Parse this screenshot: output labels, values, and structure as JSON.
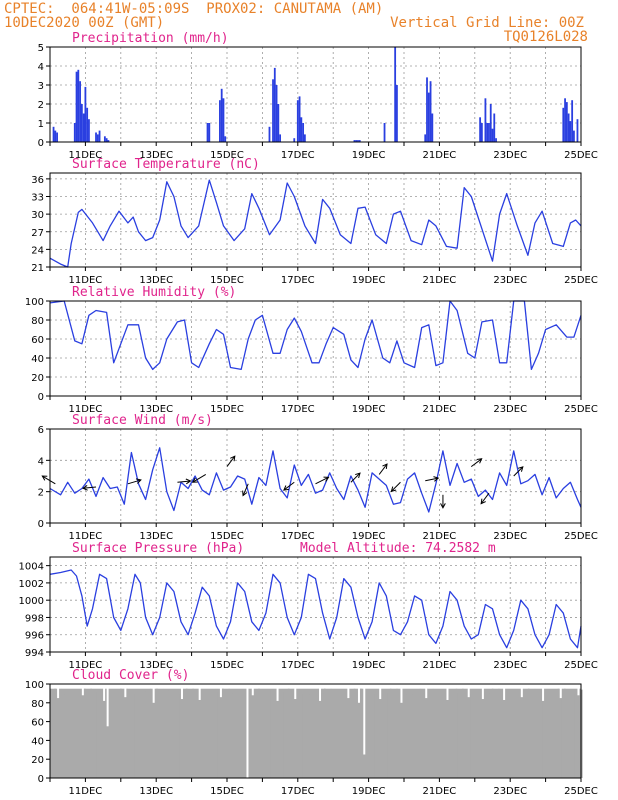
{
  "header": {
    "line1_left": "CPTEC:  064:41W-05:09S  PROX02: CANUTAMA (AM)",
    "line2_left": "10DEC2020 00Z (GMT)",
    "line2_right": "Vertical Grid Line: 00Z",
    "line3_right": "TQ0126L028"
  },
  "colors": {
    "header": "#e8822a",
    "title": "#e0248c",
    "series": "#2a3fe0",
    "cloud": "#aaaaaa",
    "grid": "#9a9a9a"
  },
  "x_ticks": [
    "11DEC",
    "13DEC",
    "15DEC",
    "17DEC",
    "19DEC",
    "21DEC",
    "23DEC",
    "25DEC"
  ],
  "chart_data": [
    {
      "id": "precip",
      "type": "bar",
      "title": "Precipitation (mm/h)",
      "x_range_days": [
        10,
        25
      ],
      "ylim": [
        0,
        5
      ],
      "yticks": [
        0,
        1,
        2,
        3,
        4,
        5
      ],
      "grid": true,
      "x": [
        10.1,
        10.15,
        10.2,
        10.7,
        10.75,
        10.8,
        10.85,
        10.9,
        10.95,
        11.0,
        11.05,
        11.1,
        11.3,
        11.35,
        11.4,
        11.55,
        11.6,
        11.65,
        14.45,
        14.5,
        14.8,
        14.85,
        14.9,
        14.95,
        16.2,
        16.3,
        16.35,
        16.4,
        16.45,
        16.5,
        16.9,
        17.0,
        17.05,
        17.1,
        17.15,
        17.2,
        18.6,
        18.65,
        18.7,
        18.75,
        19.45,
        19.75,
        19.8,
        20.6,
        20.65,
        20.7,
        20.75,
        20.8,
        22.15,
        22.2,
        22.3,
        22.35,
        22.4,
        22.45,
        22.5,
        22.55,
        22.6,
        24.5,
        24.55,
        24.6,
        24.65,
        24.7,
        24.75,
        24.8,
        24.9
      ],
      "values": [
        0.8,
        0.6,
        0.5,
        1.0,
        3.7,
        3.8,
        3.2,
        2.0,
        1.5,
        2.9,
        1.8,
        1.2,
        0.5,
        0.4,
        0.6,
        0.3,
        0.2,
        0.1,
        1.0,
        1.0,
        2.2,
        2.8,
        2.3,
        0.3,
        0.8,
        3.3,
        3.9,
        3.0,
        2.0,
        0.4,
        0.2,
        2.2,
        2.4,
        1.3,
        1.0,
        0.4,
        0.1,
        0.1,
        0.1,
        0.1,
        1.0,
        5.0,
        3.0,
        0.4,
        3.4,
        2.6,
        3.2,
        1.5,
        1.3,
        1.0,
        2.3,
        1.0,
        1.0,
        2.0,
        0.7,
        1.5,
        0.2,
        1.8,
        2.3,
        2.1,
        1.5,
        1.1,
        2.2,
        0.6,
        1.2
      ]
    },
    {
      "id": "temp",
      "type": "line",
      "title": "Surface Temperature (nC)",
      "x_range_days": [
        10,
        25
      ],
      "ylim": [
        21,
        37
      ],
      "yticks": [
        21,
        24,
        27,
        30,
        33,
        36
      ],
      "grid": true,
      "x": [
        10.0,
        10.3,
        10.5,
        10.6,
        10.8,
        10.9,
        11.2,
        11.5,
        11.7,
        11.95,
        12.2,
        12.35,
        12.5,
        12.7,
        12.9,
        13.1,
        13.3,
        13.5,
        13.7,
        13.9,
        14.2,
        14.5,
        14.7,
        14.9,
        15.2,
        15.5,
        15.7,
        15.9,
        16.2,
        16.5,
        16.7,
        16.9,
        17.2,
        17.5,
        17.7,
        17.9,
        18.2,
        18.5,
        18.7,
        18.9,
        19.2,
        19.5,
        19.7,
        19.9,
        20.2,
        20.5,
        20.7,
        20.9,
        21.2,
        21.5,
        21.7,
        21.9,
        22.2,
        22.5,
        22.7,
        22.9,
        23.2,
        23.5,
        23.7,
        23.9,
        24.2,
        24.5,
        24.7,
        24.85,
        25.0
      ],
      "values": [
        22.5,
        21.5,
        21.0,
        25,
        30.3,
        30.8,
        28.5,
        25.5,
        28,
        30.5,
        28.5,
        29.5,
        27,
        25.5,
        26,
        29,
        35.5,
        33,
        28,
        26,
        28,
        35.8,
        32,
        28,
        25.5,
        27.5,
        33.5,
        31,
        26.5,
        29,
        35.3,
        33,
        28,
        25,
        32.5,
        31,
        26.5,
        25,
        31,
        31.2,
        26.5,
        25,
        30,
        30.5,
        25.5,
        24.8,
        29,
        28,
        24.5,
        24.2,
        34.5,
        33,
        27.5,
        22,
        30,
        33.5,
        28,
        23,
        28.5,
        30.5,
        25,
        24.5,
        28.5,
        29,
        28
      ]
    },
    {
      "id": "rh",
      "type": "line",
      "title": "Relative Humidity (%)",
      "x_range_days": [
        10,
        25
      ],
      "ylim": [
        0,
        100
      ],
      "yticks": [
        0,
        20,
        40,
        60,
        80,
        100
      ],
      "grid": true,
      "x": [
        10.0,
        10.4,
        10.7,
        10.9,
        11.1,
        11.3,
        11.6,
        11.8,
        12.0,
        12.2,
        12.5,
        12.7,
        12.9,
        13.1,
        13.3,
        13.6,
        13.8,
        14.0,
        14.2,
        14.5,
        14.7,
        14.9,
        15.1,
        15.4,
        15.6,
        15.8,
        16.0,
        16.3,
        16.5,
        16.7,
        16.9,
        17.1,
        17.4,
        17.6,
        17.8,
        18.0,
        18.3,
        18.5,
        18.7,
        18.9,
        19.1,
        19.4,
        19.6,
        19.8,
        20.0,
        20.3,
        20.5,
        20.7,
        20.9,
        21.1,
        21.3,
        21.5,
        21.8,
        22.0,
        22.2,
        22.5,
        22.7,
        22.9,
        23.1,
        23.4,
        23.6,
        23.8,
        24.0,
        24.3,
        24.6,
        24.8,
        25.0
      ],
      "values": [
        98,
        100,
        58,
        55,
        85,
        90,
        88,
        35,
        55,
        75,
        75,
        40,
        28,
        35,
        60,
        78,
        80,
        35,
        30,
        55,
        70,
        65,
        30,
        28,
        60,
        80,
        85,
        45,
        45,
        70,
        82,
        68,
        35,
        35,
        55,
        72,
        65,
        38,
        30,
        60,
        80,
        40,
        35,
        58,
        35,
        30,
        72,
        75,
        32,
        35,
        100,
        90,
        45,
        40,
        78,
        80,
        35,
        35,
        100,
        100,
        28,
        45,
        70,
        75,
        62,
        62,
        85
      ]
    },
    {
      "id": "wind",
      "type": "line",
      "title": "Surface Wind (m/s)",
      "x_range_days": [
        10,
        25
      ],
      "ylim": [
        0,
        6
      ],
      "yticks": [
        0,
        2,
        4,
        6
      ],
      "grid": true,
      "x": [
        10.0,
        10.3,
        10.5,
        10.7,
        10.9,
        11.1,
        11.3,
        11.5,
        11.7,
        11.9,
        12.1,
        12.3,
        12.5,
        12.7,
        12.9,
        13.1,
        13.3,
        13.5,
        13.7,
        13.9,
        14.1,
        14.3,
        14.5,
        14.7,
        14.9,
        15.1,
        15.3,
        15.5,
        15.7,
        15.9,
        16.1,
        16.3,
        16.5,
        16.7,
        16.9,
        17.1,
        17.3,
        17.5,
        17.7,
        17.9,
        18.1,
        18.3,
        18.5,
        18.7,
        18.9,
        19.1,
        19.3,
        19.5,
        19.7,
        19.9,
        20.1,
        20.3,
        20.5,
        20.7,
        20.9,
        21.1,
        21.3,
        21.5,
        21.7,
        21.9,
        22.1,
        22.3,
        22.5,
        22.7,
        22.9,
        23.1,
        23.3,
        23.5,
        23.7,
        23.9,
        24.1,
        24.3,
        24.5,
        24.7,
        24.9,
        25.0
      ],
      "values": [
        2.2,
        1.8,
        2.6,
        1.9,
        2.2,
        2.8,
        1.7,
        2.9,
        2.2,
        2.3,
        1.2,
        4.5,
        2.5,
        1.5,
        3.4,
        4.8,
        2.0,
        0.8,
        2.6,
        2.2,
        3.0,
        2.1,
        1.8,
        3.2,
        2.1,
        2.3,
        3.0,
        2.8,
        1.2,
        2.9,
        2.4,
        4.6,
        2.2,
        1.6,
        3.7,
        2.4,
        3.1,
        1.9,
        2.1,
        3.2,
        2.2,
        1.5,
        3.0,
        2.1,
        1.0,
        3.2,
        2.8,
        2.4,
        1.2,
        1.3,
        2.8,
        3.2,
        1.9,
        0.7,
        2.5,
        4.6,
        2.4,
        3.8,
        2.6,
        2.8,
        1.7,
        2.1,
        1.5,
        3.2,
        2.4,
        4.6,
        2.5,
        2.7,
        3.1,
        1.8,
        2.9,
        1.6,
        2.2,
        2.6,
        1.5,
        1.0
      ]
    },
    {
      "id": "pressure",
      "type": "line",
      "title": "Surface Pressure (hPa)",
      "annotation": "Model Altitude: 74.2582 m",
      "x_range_days": [
        10,
        25
      ],
      "ylim": [
        994,
        1005
      ],
      "yticks": [
        994,
        996,
        998,
        1000,
        1002,
        1004
      ],
      "grid": true,
      "x": [
        10.0,
        10.3,
        10.6,
        10.75,
        10.9,
        11.05,
        11.2,
        11.4,
        11.6,
        11.8,
        12.0,
        12.2,
        12.4,
        12.55,
        12.7,
        12.9,
        13.1,
        13.3,
        13.5,
        13.7,
        13.9,
        14.1,
        14.3,
        14.5,
        14.7,
        14.9,
        15.1,
        15.3,
        15.5,
        15.7,
        15.9,
        16.1,
        16.3,
        16.5,
        16.7,
        16.9,
        17.1,
        17.3,
        17.5,
        17.7,
        17.9,
        18.1,
        18.3,
        18.5,
        18.7,
        18.9,
        19.1,
        19.3,
        19.5,
        19.7,
        19.9,
        20.1,
        20.3,
        20.5,
        20.7,
        20.9,
        21.1,
        21.3,
        21.5,
        21.7,
        21.9,
        22.1,
        22.3,
        22.5,
        22.7,
        22.9,
        23.1,
        23.3,
        23.5,
        23.7,
        23.9,
        24.1,
        24.3,
        24.5,
        24.7,
        24.9,
        25.0
      ],
      "values": [
        1003,
        1003.2,
        1003.5,
        1002.8,
        1000.5,
        997,
        999,
        1003,
        1002.5,
        998,
        996.5,
        999,
        1003,
        1002,
        998,
        996,
        998,
        1002,
        1001,
        997.5,
        996,
        998.5,
        1001.5,
        1000.5,
        997,
        995.5,
        997.5,
        1002,
        1001,
        997.5,
        996.5,
        998.5,
        1003,
        1002,
        998,
        996,
        998,
        1003,
        1002.5,
        998.5,
        995.5,
        998,
        1002.5,
        1001.5,
        998,
        995.5,
        997.5,
        1002,
        1000.5,
        996.5,
        996,
        997.5,
        1000.5,
        1000,
        996,
        995,
        997,
        1001,
        1000,
        997,
        995.5,
        996,
        999.5,
        999,
        996,
        994.5,
        996.5,
        1000,
        999,
        996,
        994.5,
        996,
        999.5,
        998.5,
        995.5,
        994.5,
        997
      ]
    },
    {
      "id": "cloud",
      "type": "bar",
      "title": "Cloud Cover (%)",
      "x_range_days": [
        10,
        25
      ],
      "ylim": [
        0,
        100
      ],
      "yticks": [
        0,
        20,
        40,
        60,
        80,
        100
      ],
      "grid": false,
      "base_value": 95,
      "dips": [
        [
          10.2,
          85
        ],
        [
          10.9,
          88
        ],
        [
          11.5,
          82
        ],
        [
          11.6,
          55
        ],
        [
          12.1,
          86
        ],
        [
          12.9,
          80
        ],
        [
          13.7,
          84
        ],
        [
          14.2,
          83
        ],
        [
          14.8,
          86
        ],
        [
          15.55,
          0
        ],
        [
          15.7,
          88
        ],
        [
          16.4,
          82
        ],
        [
          16.9,
          84
        ],
        [
          17.6,
          82
        ],
        [
          18.4,
          85
        ],
        [
          18.7,
          80
        ],
        [
          18.85,
          25
        ],
        [
          19.3,
          84
        ],
        [
          19.9,
          80
        ],
        [
          20.6,
          85
        ],
        [
          21.2,
          83
        ],
        [
          21.8,
          86
        ],
        [
          22.2,
          84
        ],
        [
          22.8,
          83
        ],
        [
          23.3,
          86
        ],
        [
          23.9,
          82
        ],
        [
          24.4,
          85
        ],
        [
          24.9,
          88
        ]
      ]
    }
  ]
}
